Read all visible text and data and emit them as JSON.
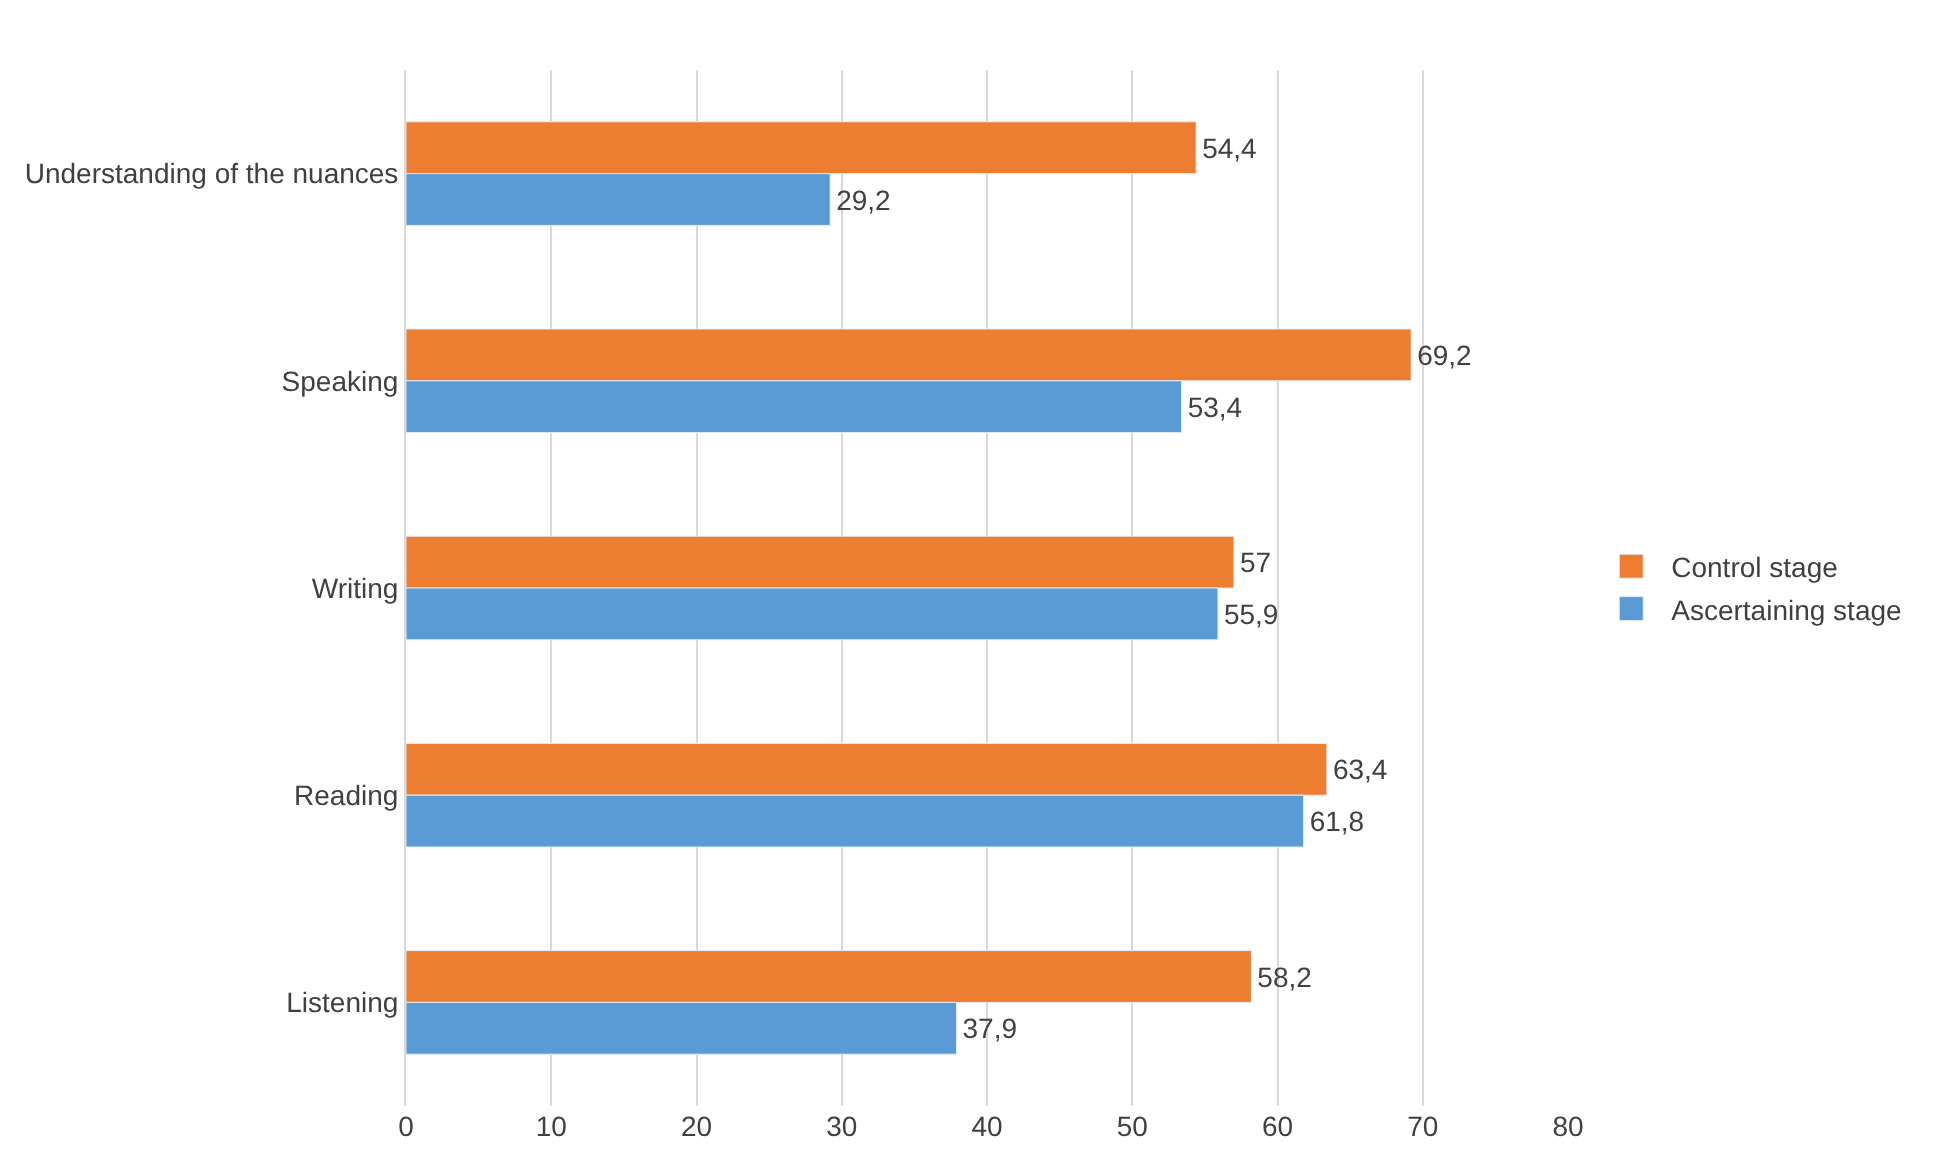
{
  "chart_data": {
    "type": "bar",
    "orientation": "horizontal",
    "categories": [
      "Understanding of the nuances",
      "Speaking",
      "Writing",
      "Reading",
      "Listening"
    ],
    "series": [
      {
        "name": "Control stage",
        "color": "#ed7d31",
        "values": [
          54.4,
          69.2,
          57,
          63.4,
          58.2
        ],
        "value_labels": [
          "54,4",
          "69,2",
          "57",
          "63,4",
          "58,2"
        ]
      },
      {
        "name": "Ascertaining stage",
        "color": "#5b9bd5",
        "values": [
          29.2,
          53.4,
          55.9,
          61.8,
          37.9
        ],
        "value_labels": [
          "29,2",
          "53,4",
          "55,9",
          "61,8",
          "37,9"
        ]
      }
    ],
    "xlim": [
      0,
      80
    ],
    "xticks": [
      0,
      10,
      20,
      30,
      40,
      50,
      60,
      70,
      80
    ],
    "grid": "x",
    "legend": "right"
  }
}
